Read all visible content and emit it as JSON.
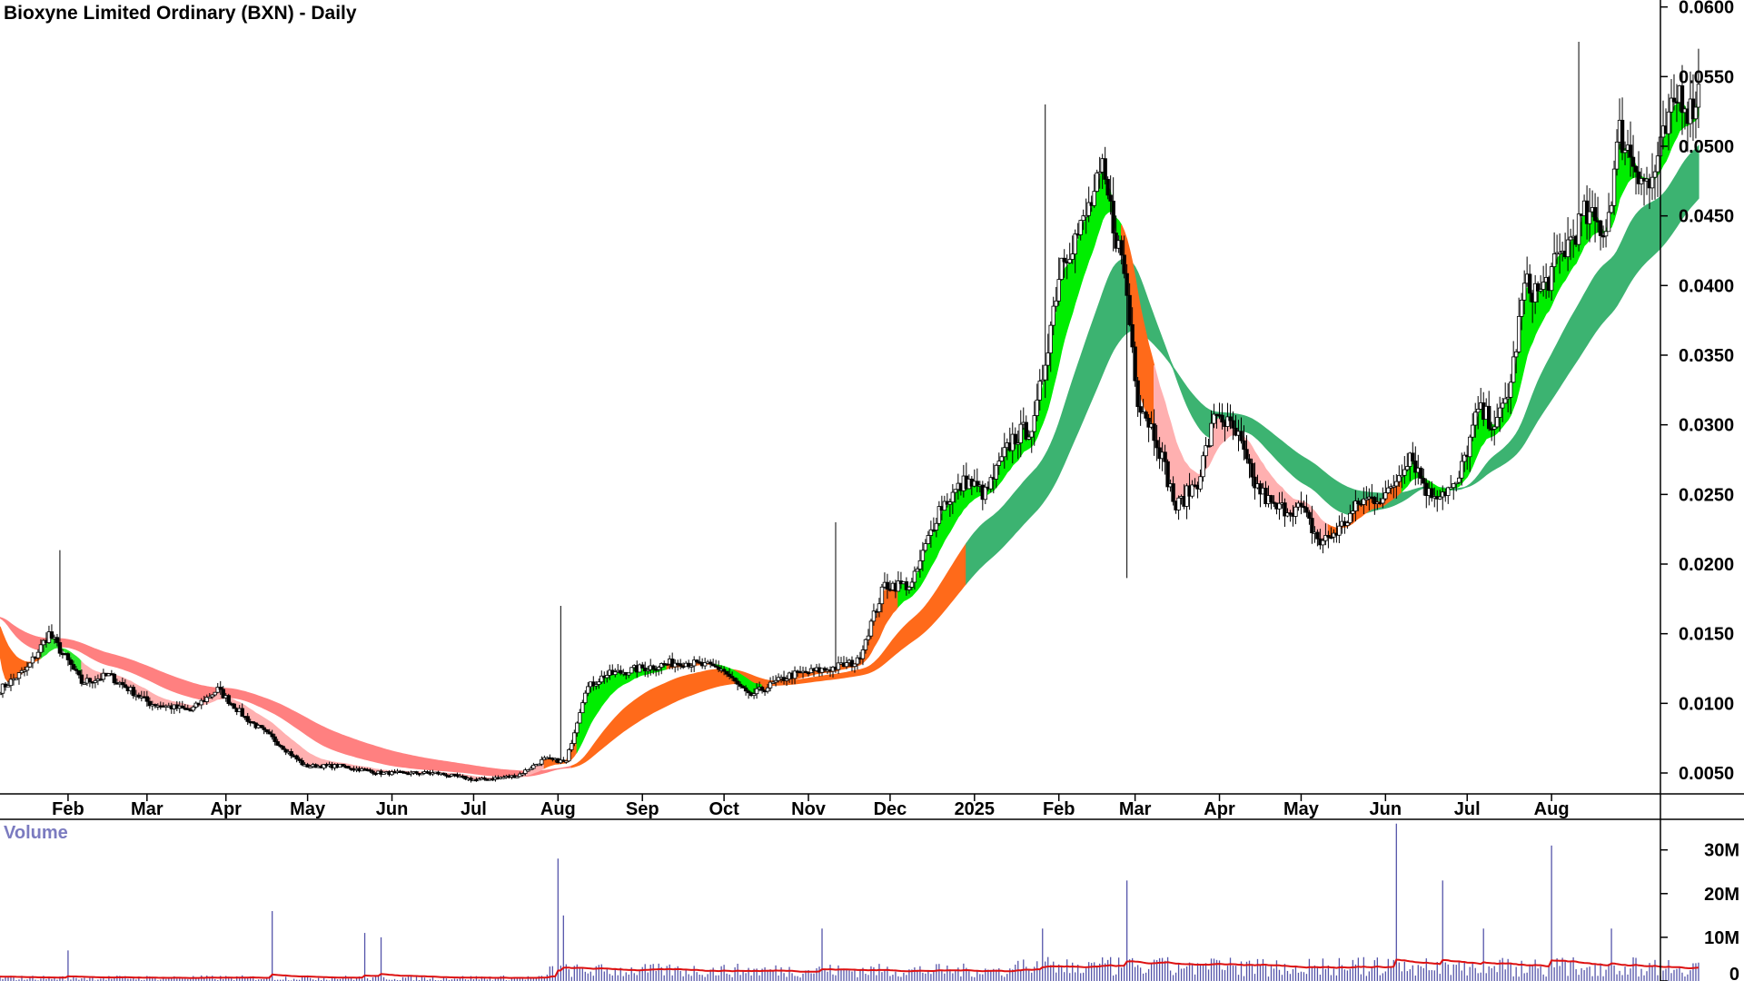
{
  "chart_data": {
    "type": "candlestick",
    "title": "Bioxyne Limited Ordinary (BXN) - Daily",
    "price_axis": {
      "ticks": [
        "0.0600",
        "0.0550",
        "0.0500",
        "0.0450",
        "0.0400",
        "0.0350",
        "0.0300",
        "0.0250",
        "0.0200",
        "0.0150",
        "0.0100",
        "0.0050"
      ],
      "ylim": [
        0.0035,
        0.0605
      ]
    },
    "x_axis": {
      "ticks": [
        {
          "label": "Feb",
          "day": 25
        },
        {
          "label": "Mar",
          "day": 54
        },
        {
          "label": "Apr",
          "day": 83
        },
        {
          "label": "May",
          "day": 113
        },
        {
          "label": "Jun",
          "day": 144
        },
        {
          "label": "Jul",
          "day": 174
        },
        {
          "label": "Aug",
          "day": 205
        },
        {
          "label": "Sep",
          "day": 236
        },
        {
          "label": "Oct",
          "day": 266
        },
        {
          "label": "Nov",
          "day": 297
        },
        {
          "label": "Dec",
          "day": 327
        },
        {
          "label": "2025",
          "day": 358
        },
        {
          "label": "Feb",
          "day": 389
        },
        {
          "label": "Mar",
          "day": 417
        },
        {
          "label": "Apr",
          "day": 448
        },
        {
          "label": "May",
          "day": 478
        },
        {
          "label": "Jun",
          "day": 509
        },
        {
          "label": "Jul",
          "day": 539
        },
        {
          "label": "Aug",
          "day": 570
        }
      ],
      "range_days": [
        0,
        610
      ]
    },
    "price_anchors": [
      [
        0,
        0.011
      ],
      [
        10,
        0.0125
      ],
      [
        18,
        0.015
      ],
      [
        25,
        0.013
      ],
      [
        30,
        0.0115
      ],
      [
        40,
        0.012
      ],
      [
        55,
        0.01
      ],
      [
        70,
        0.0095
      ],
      [
        80,
        0.011
      ],
      [
        90,
        0.009
      ],
      [
        100,
        0.0075
      ],
      [
        112,
        0.0055
      ],
      [
        125,
        0.0055
      ],
      [
        140,
        0.005
      ],
      [
        160,
        0.005
      ],
      [
        175,
        0.0045
      ],
      [
        190,
        0.0048
      ],
      [
        200,
        0.006
      ],
      [
        208,
        0.0058
      ],
      [
        215,
        0.011
      ],
      [
        222,
        0.012
      ],
      [
        235,
        0.0125
      ],
      [
        250,
        0.013
      ],
      [
        265,
        0.0125
      ],
      [
        275,
        0.0105
      ],
      [
        290,
        0.012
      ],
      [
        305,
        0.0125
      ],
      [
        315,
        0.013
      ],
      [
        325,
        0.0185
      ],
      [
        335,
        0.0185
      ],
      [
        345,
        0.024
      ],
      [
        355,
        0.026
      ],
      [
        362,
        0.025
      ],
      [
        372,
        0.029
      ],
      [
        380,
        0.03
      ],
      [
        390,
        0.042
      ],
      [
        397,
        0.044
      ],
      [
        405,
        0.048
      ],
      [
        413,
        0.041
      ],
      [
        418,
        0.032
      ],
      [
        425,
        0.029
      ],
      [
        432,
        0.024
      ],
      [
        440,
        0.026
      ],
      [
        447,
        0.031
      ],
      [
        455,
        0.029
      ],
      [
        460,
        0.026
      ],
      [
        468,
        0.024
      ],
      [
        478,
        0.024
      ],
      [
        485,
        0.0215
      ],
      [
        492,
        0.0225
      ],
      [
        500,
        0.0245
      ],
      [
        510,
        0.025
      ],
      [
        518,
        0.028
      ],
      [
        525,
        0.025
      ],
      [
        535,
        0.0255
      ],
      [
        543,
        0.031
      ],
      [
        550,
        0.03
      ],
      [
        555,
        0.033
      ],
      [
        560,
        0.04
      ],
      [
        566,
        0.0395
      ],
      [
        573,
        0.042
      ],
      [
        582,
        0.045
      ],
      [
        590,
        0.044
      ],
      [
        595,
        0.051
      ],
      [
        600,
        0.049
      ],
      [
        606,
        0.047
      ],
      [
        612,
        0.051
      ],
      [
        617,
        0.054
      ],
      [
        621,
        0.0525
      ],
      [
        624,
        0.054
      ]
    ],
    "price_spikes": [
      [
        22,
        0.021
      ],
      [
        206,
        0.017
      ],
      [
        307,
        0.023
      ],
      [
        384,
        0.053
      ],
      [
        414,
        0.019
      ],
      [
        580,
        0.0575
      ],
      [
        624,
        0.057
      ]
    ],
    "short_band_segments": [
      {
        "range": [
          0,
          15
        ],
        "color": "#ff6a1a"
      },
      {
        "range": [
          15,
          30
        ],
        "color": "#2ee82e"
      },
      {
        "range": [
          30,
          200
        ],
        "color": "#ffb0b0"
      },
      {
        "range": [
          200,
          212
        ],
        "color": "#ff6a1a"
      },
      {
        "range": [
          212,
          245
        ],
        "color": "#00ee00"
      },
      {
        "range": [
          245,
          262
        ],
        "color": "#ff6a1a"
      },
      {
        "range": [
          262,
          280
        ],
        "color": "#00ee00"
      },
      {
        "range": [
          280,
          330
        ],
        "color": "#ff6a1a"
      },
      {
        "range": [
          330,
          412
        ],
        "color": "#00ee00"
      },
      {
        "range": [
          412,
          424
        ],
        "color": "#ff6a1a"
      },
      {
        "range": [
          424,
          488
        ],
        "color": "#ffb0b0"
      },
      {
        "range": [
          488,
          515
        ],
        "color": "#ff6a1a"
      },
      {
        "range": [
          515,
          625
        ],
        "color": "#00ee00"
      }
    ],
    "long_band_segments": [
      {
        "range": [
          0,
          210
        ],
        "color": "#ff8080"
      },
      {
        "range": [
          210,
          355
        ],
        "color": "#ff6a1a"
      },
      {
        "range": [
          355,
          625
        ],
        "color": "#3cb371"
      }
    ],
    "volume": {
      "label": "Volume",
      "ticks": [
        "30M",
        "20M",
        "10M",
        "0"
      ],
      "ylim": [
        0,
        37
      ],
      "bar_color": "#5555aa",
      "average_color": "#dd1111",
      "spikes_millions": [
        [
          25,
          7
        ],
        [
          100,
          16
        ],
        [
          134,
          11
        ],
        [
          140,
          10
        ],
        [
          205,
          28
        ],
        [
          207,
          15
        ],
        [
          302,
          12
        ],
        [
          383,
          12
        ],
        [
          414,
          23
        ],
        [
          513,
          36
        ],
        [
          530,
          23
        ],
        [
          545,
          12
        ],
        [
          570,
          31
        ],
        [
          592,
          12
        ]
      ]
    }
  }
}
